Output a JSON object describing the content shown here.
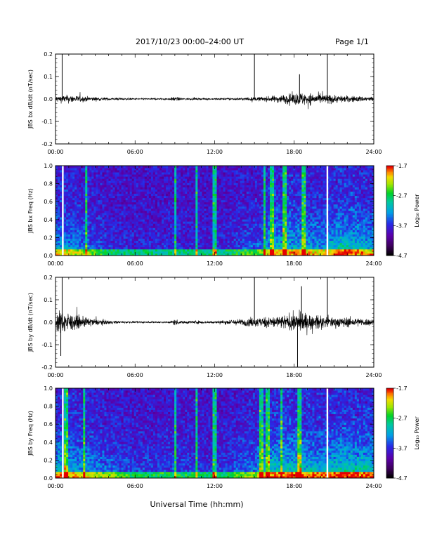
{
  "header": {
    "title": "2017/10/23  00:00–24:00 UT",
    "page": "Page 1/1"
  },
  "footer": {
    "xlabel": "Universal Time (hh:mm)"
  },
  "chart_data": [
    {
      "type": "line",
      "ylabel": "JBS bx dB/dt (nT/sec)",
      "xlim": [
        0,
        24
      ],
      "ylim": [
        -0.2,
        0.2
      ],
      "x_ticks": [
        "00:00",
        "06:00",
        "12:00",
        "18:00",
        "24:00"
      ],
      "y_ticks": [
        "0.2",
        "0.1",
        "0.0",
        "-0.1",
        "-0.2"
      ],
      "spikes": [
        {
          "x": 0.5,
          "y": 0.2
        },
        {
          "x": 15.0,
          "y": 0.2
        },
        {
          "x": 20.5,
          "y": 0.2
        },
        {
          "x": 20.55,
          "y": -0.02
        },
        {
          "x": 18.4,
          "y": 0.11
        }
      ],
      "envelope": [
        {
          "x": 0,
          "amp": 0.02
        },
        {
          "x": 1,
          "amp": 0.025
        },
        {
          "x": 2,
          "amp": 0.018
        },
        {
          "x": 3,
          "amp": 0.012
        },
        {
          "x": 4,
          "amp": 0.008
        },
        {
          "x": 6,
          "amp": 0.005
        },
        {
          "x": 8.5,
          "amp": 0.005
        },
        {
          "x": 9,
          "amp": 0.015
        },
        {
          "x": 9.5,
          "amp": 0.006
        },
        {
          "x": 12,
          "amp": 0.005
        },
        {
          "x": 14,
          "amp": 0.008
        },
        {
          "x": 16,
          "amp": 0.015
        },
        {
          "x": 17.5,
          "amp": 0.03
        },
        {
          "x": 18.5,
          "amp": 0.04
        },
        {
          "x": 20,
          "amp": 0.03
        },
        {
          "x": 21,
          "amp": 0.025
        },
        {
          "x": 22,
          "amp": 0.02
        },
        {
          "x": 24,
          "amp": 0.015
        }
      ]
    },
    {
      "type": "heatmap",
      "ylabel": "JBS bx Freq (Hz)",
      "xlim": [
        0,
        24
      ],
      "ylim": [
        0,
        1.0
      ],
      "x_ticks": [
        "00:00",
        "06:00",
        "12:00",
        "18:00",
        "24:00"
      ],
      "y_ticks": [
        "1.0",
        "0.8",
        "0.6",
        "0.4",
        "0.2",
        "0.0"
      ],
      "colorbar": {
        "label": "Log₁₀ Power",
        "min": -4.7,
        "max": -1.7,
        "ticks": [
          "-1.7",
          "-2.7",
          "-3.7",
          "-4.7"
        ]
      },
      "gaps": [
        0.55,
        20.5
      ],
      "bright_lines": [
        2.3,
        9.0,
        10.6,
        12.0,
        15.8,
        16.3,
        17.3,
        18.7
      ],
      "activity": [
        {
          "x": 0,
          "level": 0.5
        },
        {
          "x": 1,
          "level": 0.45
        },
        {
          "x": 2.5,
          "level": 0.3
        },
        {
          "x": 4,
          "level": 0.15
        },
        {
          "x": 6,
          "level": 0.1
        },
        {
          "x": 9,
          "level": 0.12
        },
        {
          "x": 12,
          "level": 0.08
        },
        {
          "x": 15.5,
          "level": 0.3
        },
        {
          "x": 16,
          "level": 0.5
        },
        {
          "x": 18,
          "level": 0.55
        },
        {
          "x": 20,
          "level": 0.45
        },
        {
          "x": 21.5,
          "level": 0.65
        },
        {
          "x": 24,
          "level": 0.5
        }
      ]
    },
    {
      "type": "line",
      "ylabel": "JBS by dB/dt (nT/sec)",
      "xlim": [
        0,
        24
      ],
      "ylim": [
        -0.2,
        0.2
      ],
      "x_ticks": [
        "00:00",
        "06:00",
        "12:00",
        "18:00",
        "24:00"
      ],
      "y_ticks": [
        "0.2",
        "0.1",
        "0.0",
        "-0.1",
        "-0.2"
      ],
      "spikes": [
        {
          "x": 0.5,
          "y": 0.2
        },
        {
          "x": 15.0,
          "y": 0.2
        },
        {
          "x": 18.25,
          "y": -0.2
        },
        {
          "x": 18.55,
          "y": 0.16
        },
        {
          "x": 20.5,
          "y": 0.2
        },
        {
          "x": 0.4,
          "y": -0.15
        }
      ],
      "envelope": [
        {
          "x": 0,
          "amp": 0.06
        },
        {
          "x": 0.7,
          "amp": 0.07
        },
        {
          "x": 1.5,
          "amp": 0.04
        },
        {
          "x": 3,
          "amp": 0.02
        },
        {
          "x": 4.5,
          "amp": 0.008
        },
        {
          "x": 6,
          "amp": 0.005
        },
        {
          "x": 8.5,
          "amp": 0.005
        },
        {
          "x": 9,
          "amp": 0.02
        },
        {
          "x": 9.5,
          "amp": 0.008
        },
        {
          "x": 10.5,
          "amp": 0.01
        },
        {
          "x": 12,
          "amp": 0.008
        },
        {
          "x": 14,
          "amp": 0.02
        },
        {
          "x": 16,
          "amp": 0.035
        },
        {
          "x": 17.5,
          "amp": 0.045
        },
        {
          "x": 18.5,
          "amp": 0.06
        },
        {
          "x": 20,
          "amp": 0.035
        },
        {
          "x": 22,
          "amp": 0.03
        },
        {
          "x": 24,
          "amp": 0.02
        }
      ]
    },
    {
      "type": "heatmap",
      "ylabel": "JBS by Freq (Hz)",
      "xlim": [
        0,
        24
      ],
      "ylim": [
        0,
        1.0
      ],
      "x_ticks": [
        "00:00",
        "06:00",
        "12:00",
        "18:00",
        "24:00"
      ],
      "y_ticks": [
        "1.0",
        "0.8",
        "0.6",
        "0.4",
        "0.2",
        "0.0"
      ],
      "colorbar": {
        "label": "Log₁₀ Power",
        "min": -4.7,
        "max": -1.7,
        "ticks": [
          "-1.7",
          "-2.7",
          "-3.7",
          "-4.7"
        ]
      },
      "gaps": [
        0.55,
        20.5
      ],
      "bright_lines": [
        0.8,
        2.2,
        9.0,
        10.6,
        12.0,
        15.5,
        16.0,
        17.0,
        18.4
      ],
      "activity": [
        {
          "x": 0,
          "level": 0.6
        },
        {
          "x": 1,
          "level": 0.55
        },
        {
          "x": 2.5,
          "level": 0.45
        },
        {
          "x": 4,
          "level": 0.3
        },
        {
          "x": 6,
          "level": 0.2
        },
        {
          "x": 9,
          "level": 0.2
        },
        {
          "x": 12,
          "level": 0.15
        },
        {
          "x": 15,
          "level": 0.35
        },
        {
          "x": 16,
          "level": 0.6
        },
        {
          "x": 18,
          "level": 0.65
        },
        {
          "x": 20,
          "level": 0.55
        },
        {
          "x": 21.5,
          "level": 0.7
        },
        {
          "x": 24,
          "level": 0.6
        }
      ]
    }
  ]
}
